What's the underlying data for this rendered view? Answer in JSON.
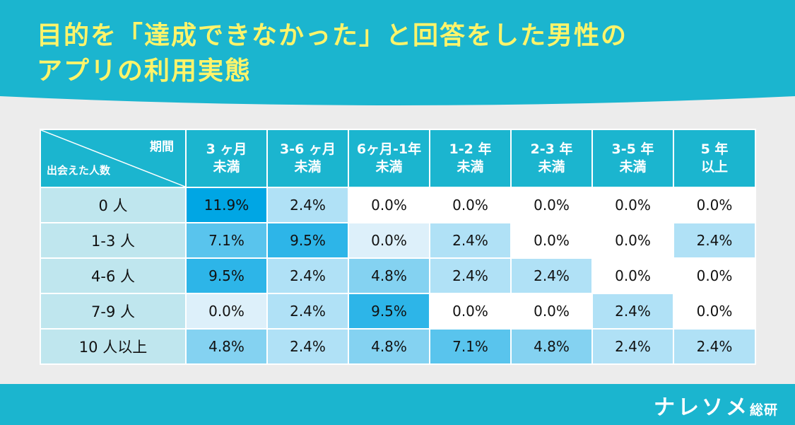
{
  "title": {
    "line1": "目的を「達成できなかった」と回答をした男性の",
    "line2": "アプリの利用実態"
  },
  "chart_data": {
    "type": "heatmap",
    "corner_labels": {
      "columns": "期間",
      "rows": "出会えた人数"
    },
    "columns": [
      {
        "line1": "3 ヶ月",
        "line2": "未満"
      },
      {
        "line1": "3-6 ヶ月",
        "line2": "未満"
      },
      {
        "line1": "6ヶ月-1年",
        "line2": "未満"
      },
      {
        "line1": "1-2 年",
        "line2": "未満"
      },
      {
        "line1": "2-3 年",
        "line2": "未満"
      },
      {
        "line1": "3-5 年",
        "line2": "未満"
      },
      {
        "line1": "5 年",
        "line2": "以上"
      }
    ],
    "rows": [
      "0 人",
      "1-3 人",
      "4-6 人",
      "7-9 人",
      "10 人以上"
    ],
    "values": [
      [
        11.9,
        2.4,
        0.0,
        0.0,
        0.0,
        0.0,
        0.0
      ],
      [
        7.1,
        9.5,
        0.0,
        2.4,
        0.0,
        0.0,
        2.4
      ],
      [
        9.5,
        2.4,
        4.8,
        2.4,
        2.4,
        0.0,
        0.0
      ],
      [
        0.0,
        2.4,
        9.5,
        0.0,
        0.0,
        2.4,
        0.0
      ],
      [
        4.8,
        2.4,
        4.8,
        7.1,
        4.8,
        2.4,
        2.4
      ]
    ],
    "display": [
      [
        "11.9%",
        "2.4%",
        "0.0%",
        "0.0%",
        "0.0%",
        "0.0%",
        "0.0%"
      ],
      [
        "7.1%",
        "9.5%",
        "0.0%",
        "2.4%",
        "0.0%",
        "0.0%",
        "2.4%"
      ],
      [
        "9.5%",
        "2.4%",
        "4.8%",
        "2.4%",
        "2.4%",
        "0.0%",
        "0.0%"
      ],
      [
        "0.0%",
        "2.4%",
        "9.5%",
        "0.0%",
        "0.0%",
        "2.4%",
        "0.0%"
      ],
      [
        "4.8%",
        "2.4%",
        "4.8%",
        "7.1%",
        "4.8%",
        "2.4%",
        "2.4%"
      ]
    ],
    "unit": "%"
  },
  "colors": {
    "header_teal": "#1bb5cf",
    "title_yellow": "#fff46a",
    "row_label_bg": "#bfe6ee",
    "heat_max": "#00a6e4"
  },
  "footer": {
    "logo_main": "ナレソメ",
    "logo_sub": "総研"
  }
}
